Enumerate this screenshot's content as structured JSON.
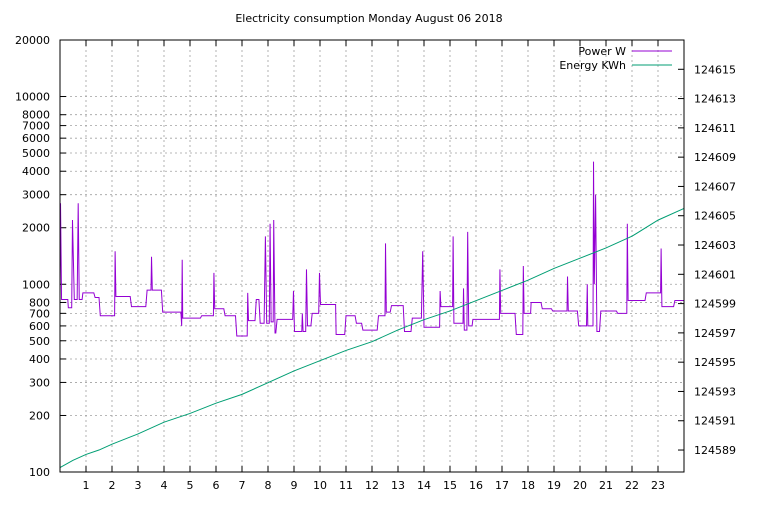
{
  "chart_data": {
    "type": "line",
    "title": "Electricity consumption Monday August 06 2018",
    "xlabel": "",
    "ylabel": "",
    "xlim": [
      0,
      24
    ],
    "ylim": [
      100,
      20000
    ],
    "y_scale": "log",
    "y2lim": [
      124587.5,
      124617
    ],
    "x_ticks": [
      "1",
      "2",
      "3",
      "4",
      "5",
      "6",
      "7",
      "8",
      "9",
      "10",
      "11",
      "12",
      "13",
      "14",
      "15",
      "16",
      "17",
      "18",
      "19",
      "20",
      "21",
      "22",
      "23"
    ],
    "y_ticks": [
      "100",
      "200",
      "300",
      "400",
      "500",
      "600",
      "700",
      "800",
      "1000",
      "2000",
      "3000",
      "4000",
      "5000",
      "6000",
      "7000",
      "8000",
      "10000",
      "20000"
    ],
    "y2_ticks": [
      "124589",
      "124591",
      "124593",
      "124595",
      "124597",
      "124599",
      "124601",
      "124603",
      "124605",
      "124607",
      "124609",
      "124611",
      "124613",
      "124615"
    ],
    "grid": true,
    "legend_position": "top-right",
    "colors": {
      "power": "#9400d3",
      "energy": "#009e73"
    },
    "series": [
      {
        "name": "Power W",
        "axis": "left",
        "points": [
          [
            0,
            830
          ],
          [
            0.02,
            2700
          ],
          [
            0.06,
            830
          ],
          [
            0.3,
            830
          ],
          [
            0.32,
            750
          ],
          [
            0.45,
            750
          ],
          [
            0.48,
            2200
          ],
          [
            0.55,
            830
          ],
          [
            0.66,
            830
          ],
          [
            0.7,
            2700
          ],
          [
            0.74,
            830
          ],
          [
            0.85,
            830
          ],
          [
            0.88,
            900
          ],
          [
            1.3,
            900
          ],
          [
            1.35,
            850
          ],
          [
            1.5,
            850
          ],
          [
            1.55,
            680
          ],
          [
            2.1,
            680
          ],
          [
            2.12,
            1500
          ],
          [
            2.15,
            860
          ],
          [
            2.7,
            860
          ],
          [
            2.75,
            760
          ],
          [
            3.3,
            760
          ],
          [
            3.35,
            930
          ],
          [
            3.5,
            930
          ],
          [
            3.52,
            1400
          ],
          [
            3.55,
            930
          ],
          [
            3.9,
            930
          ],
          [
            3.95,
            710
          ],
          [
            4.65,
            710
          ],
          [
            4.68,
            600
          ],
          [
            4.7,
            1350
          ],
          [
            4.72,
            660
          ],
          [
            5.4,
            660
          ],
          [
            5.45,
            680
          ],
          [
            5.9,
            680
          ],
          [
            5.92,
            1150
          ],
          [
            5.95,
            740
          ],
          [
            6.3,
            740
          ],
          [
            6.35,
            680
          ],
          [
            6.75,
            680
          ],
          [
            6.8,
            530
          ],
          [
            7.2,
            530
          ],
          [
            7.22,
            900
          ],
          [
            7.25,
            640
          ],
          [
            7.5,
            640
          ],
          [
            7.55,
            830
          ],
          [
            7.65,
            830
          ],
          [
            7.7,
            620
          ],
          [
            7.85,
            620
          ],
          [
            7.9,
            1800
          ],
          [
            7.95,
            620
          ],
          [
            8.05,
            620
          ],
          [
            8.08,
            2100
          ],
          [
            8.12,
            630
          ],
          [
            8.2,
            630
          ],
          [
            8.22,
            2200
          ],
          [
            8.27,
            550
          ],
          [
            8.3,
            550
          ],
          [
            8.35,
            650
          ],
          [
            8.95,
            650
          ],
          [
            8.98,
            920
          ],
          [
            9.02,
            560
          ],
          [
            9.3,
            560
          ],
          [
            9.32,
            700
          ],
          [
            9.35,
            560
          ],
          [
            9.45,
            560
          ],
          [
            9.48,
            1200
          ],
          [
            9.52,
            600
          ],
          [
            9.65,
            600
          ],
          [
            9.7,
            700
          ],
          [
            9.95,
            700
          ],
          [
            9.98,
            1150
          ],
          [
            10.02,
            780
          ],
          [
            10.6,
            780
          ],
          [
            10.62,
            540
          ],
          [
            10.95,
            540
          ],
          [
            11,
            680
          ],
          [
            11.35,
            680
          ],
          [
            11.4,
            620
          ],
          [
            11.6,
            620
          ],
          [
            11.65,
            570
          ],
          [
            12.2,
            570
          ],
          [
            12.25,
            680
          ],
          [
            12.5,
            680
          ],
          [
            12.52,
            1650
          ],
          [
            12.55,
            710
          ],
          [
            12.7,
            710
          ],
          [
            12.75,
            770
          ],
          [
            13.2,
            770
          ],
          [
            13.25,
            560
          ],
          [
            13.5,
            560
          ],
          [
            13.55,
            660
          ],
          [
            13.9,
            660
          ],
          [
            13.95,
            1500
          ],
          [
            14,
            590
          ],
          [
            14.6,
            590
          ],
          [
            14.62,
            920
          ],
          [
            14.65,
            760
          ],
          [
            15.1,
            760
          ],
          [
            15.12,
            1800
          ],
          [
            15.15,
            620
          ],
          [
            15.5,
            620
          ],
          [
            15.52,
            950
          ],
          [
            15.55,
            570
          ],
          [
            15.65,
            570
          ],
          [
            15.68,
            1900
          ],
          [
            15.72,
            600
          ],
          [
            15.85,
            600
          ],
          [
            15.88,
            650
          ],
          [
            16.9,
            650
          ],
          [
            16.92,
            1200
          ],
          [
            16.95,
            700
          ],
          [
            17.5,
            700
          ],
          [
            17.55,
            540
          ],
          [
            17.8,
            540
          ],
          [
            17.82,
            1250
          ],
          [
            17.85,
            700
          ],
          [
            18.1,
            700
          ],
          [
            18.12,
            800
          ],
          [
            18.5,
            800
          ],
          [
            18.55,
            740
          ],
          [
            18.9,
            740
          ],
          [
            18.95,
            720
          ],
          [
            19.5,
            720
          ],
          [
            19.52,
            1100
          ],
          [
            19.55,
            720
          ],
          [
            19.9,
            720
          ],
          [
            19.95,
            600
          ],
          [
            20.25,
            600
          ],
          [
            20.28,
            1000
          ],
          [
            20.3,
            600
          ],
          [
            20.5,
            600
          ],
          [
            20.52,
            4500
          ],
          [
            20.55,
            1000
          ],
          [
            20.6,
            3000
          ],
          [
            20.65,
            560
          ],
          [
            20.75,
            560
          ],
          [
            20.8,
            720
          ],
          [
            21.4,
            720
          ],
          [
            21.45,
            700
          ],
          [
            21.8,
            700
          ],
          [
            21.82,
            2100
          ],
          [
            21.85,
            820
          ],
          [
            22.5,
            820
          ],
          [
            22.55,
            900
          ],
          [
            23.1,
            900
          ],
          [
            23.12,
            1550
          ],
          [
            23.15,
            760
          ],
          [
            23.6,
            760
          ],
          [
            23.65,
            820
          ],
          [
            24,
            820
          ]
        ]
      },
      {
        "name": "Energy KWh",
        "axis": "right",
        "points": [
          [
            0,
            124587.8
          ],
          [
            0.5,
            124588.3
          ],
          [
            1,
            124588.7
          ],
          [
            1.5,
            124589
          ],
          [
            2,
            124589.4
          ],
          [
            3,
            124590.1
          ],
          [
            4,
            124590.9
          ],
          [
            5,
            124591.5
          ],
          [
            6,
            124592.2
          ],
          [
            7,
            124592.8
          ],
          [
            8,
            124593.6
          ],
          [
            9,
            124594.4
          ],
          [
            10,
            124595.1
          ],
          [
            11,
            124595.8
          ],
          [
            12,
            124596.4
          ],
          [
            13,
            124597.2
          ],
          [
            14,
            124597.9
          ],
          [
            15,
            124598.5
          ],
          [
            16,
            124599.2
          ],
          [
            17,
            124599.9
          ],
          [
            18,
            124600.6
          ],
          [
            19,
            124601.4
          ],
          [
            20,
            124602.1
          ],
          [
            21,
            124602.8
          ],
          [
            22,
            124603.6
          ],
          [
            23,
            124604.7
          ],
          [
            24,
            124605.5
          ]
        ]
      }
    ]
  }
}
